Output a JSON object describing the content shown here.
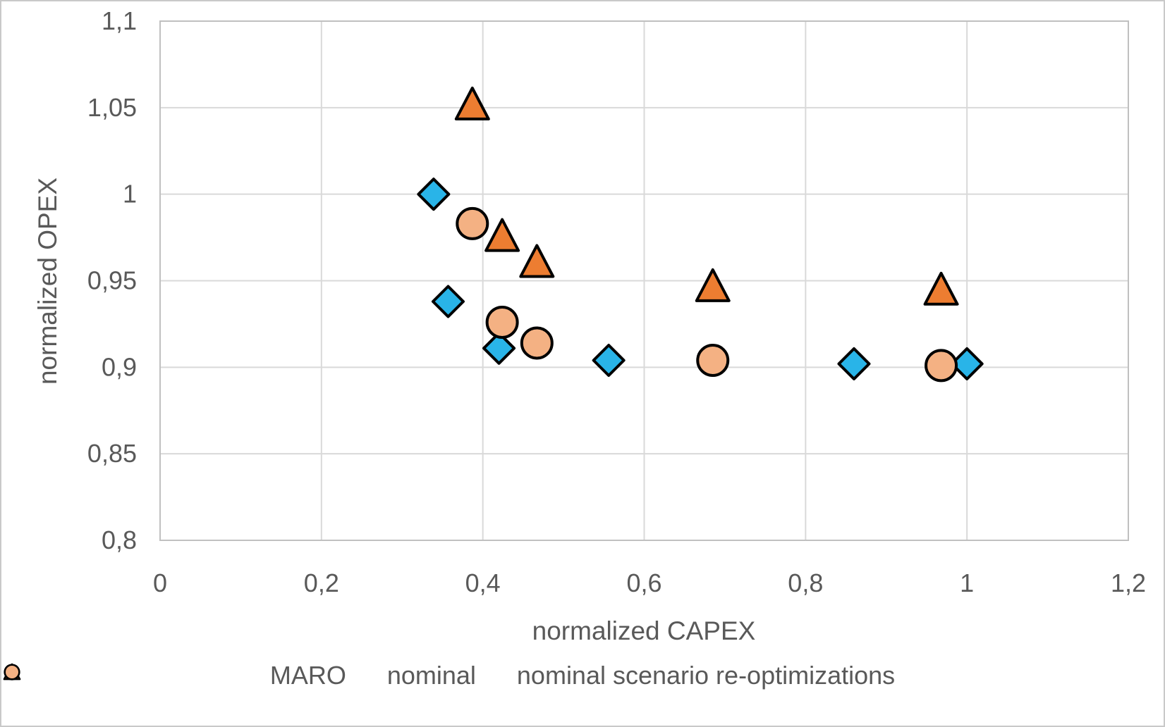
{
  "chart_data": {
    "type": "scatter",
    "title": "",
    "xlabel": "normalized CAPEX",
    "ylabel": "normalized OPEX",
    "xlim": [
      0,
      1.2
    ],
    "ylim": [
      0.8,
      1.1
    ],
    "grid": true,
    "legend_position": "bottom",
    "x_ticks": {
      "values": [
        0,
        0.2,
        0.4,
        0.6,
        0.8,
        1,
        1.2
      ],
      "labels": [
        "0",
        "0,2",
        "0,4",
        "0,6",
        "0,8",
        "1",
        "1,2"
      ]
    },
    "y_ticks": {
      "values": [
        0.8,
        0.85,
        0.9,
        0.95,
        1,
        1.05,
        1.1
      ],
      "labels": [
        "0,8",
        "0,85",
        "0,9",
        "0,95",
        "1",
        "1,05",
        "1,1"
      ]
    },
    "series": [
      {
        "name": "MARO",
        "marker": "triangle",
        "fill": "#ED7D31",
        "stroke": "#000000",
        "points": [
          [
            0.387,
            1.052
          ],
          [
            0.424,
            0.976
          ],
          [
            0.467,
            0.961
          ],
          [
            0.685,
            0.947
          ],
          [
            0.968,
            0.945
          ]
        ]
      },
      {
        "name": "nominal",
        "marker": "diamond",
        "fill": "#29B4E8",
        "stroke": "#000000",
        "points": [
          [
            0.339,
            1.0
          ],
          [
            0.357,
            0.938
          ],
          [
            0.42,
            0.911
          ],
          [
            0.556,
            0.904
          ],
          [
            0.86,
            0.902
          ],
          [
            1.0,
            0.902
          ]
        ]
      },
      {
        "name": "nominal scenario re-optimizations",
        "marker": "circle",
        "fill": "#F4B183",
        "stroke": "#000000",
        "points": [
          [
            0.387,
            0.983
          ],
          [
            0.424,
            0.926
          ],
          [
            0.467,
            0.914
          ],
          [
            0.685,
            0.904
          ],
          [
            0.968,
            0.901
          ]
        ]
      }
    ],
    "colors": {
      "text": "#595959",
      "gridline": "#D9D9D9",
      "plot_border": "#C0C0C0",
      "background": "#FFFFFF"
    }
  }
}
